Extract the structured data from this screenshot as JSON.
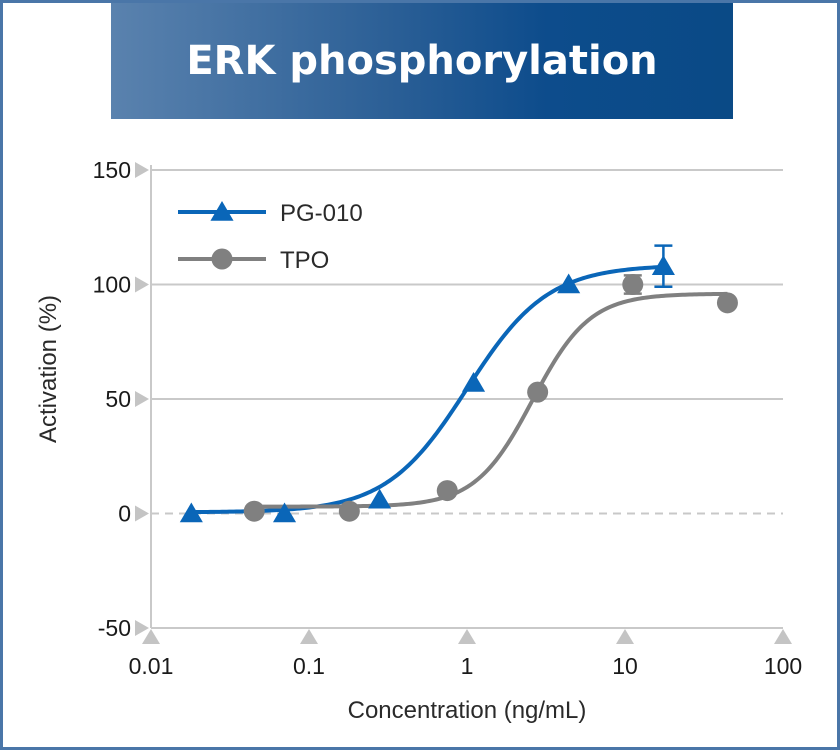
{
  "title": "ERK phosphorylation",
  "chart_data": {
    "type": "scatter",
    "title": "ERK phosphorylation",
    "xlabel": "Concentration (ng/mL)",
    "ylabel": "Activation (%)",
    "xscale": "log",
    "xlim": [
      0.01,
      100
    ],
    "ylim": [
      -50,
      150
    ],
    "xticks": [
      "0.01",
      "0.1",
      "1",
      "10",
      "100"
    ],
    "yticks": [
      "-50",
      "0",
      "50",
      "100",
      "150"
    ],
    "grid": "horizontal",
    "zero_line": "dashed",
    "legend_position": "top-left",
    "series": [
      {
        "name": "PG-010",
        "color": "#0a66b8",
        "marker": "triangle",
        "x": [
          0.018,
          0.07,
          0.28,
          1.1,
          4.4,
          17.5
        ],
        "y": [
          0,
          0,
          6,
          57,
          100,
          108
        ],
        "error": [
          0,
          0,
          0,
          0,
          0,
          9
        ],
        "fit": {
          "bottom": 0.5,
          "top": 108.5,
          "ec50": 1.0,
          "hill": 1.7
        }
      },
      {
        "name": "TPO",
        "color": "#808080",
        "marker": "circle",
        "x": [
          0.045,
          0.18,
          0.75,
          2.8,
          11.2,
          44.5
        ],
        "y": [
          1,
          1,
          10,
          53,
          100,
          92
        ],
        "error": [
          0,
          0,
          0,
          0,
          4,
          0
        ],
        "fit": {
          "bottom": 3,
          "top": 96,
          "ec50": 2.6,
          "hill": 2.4
        }
      }
    ]
  }
}
